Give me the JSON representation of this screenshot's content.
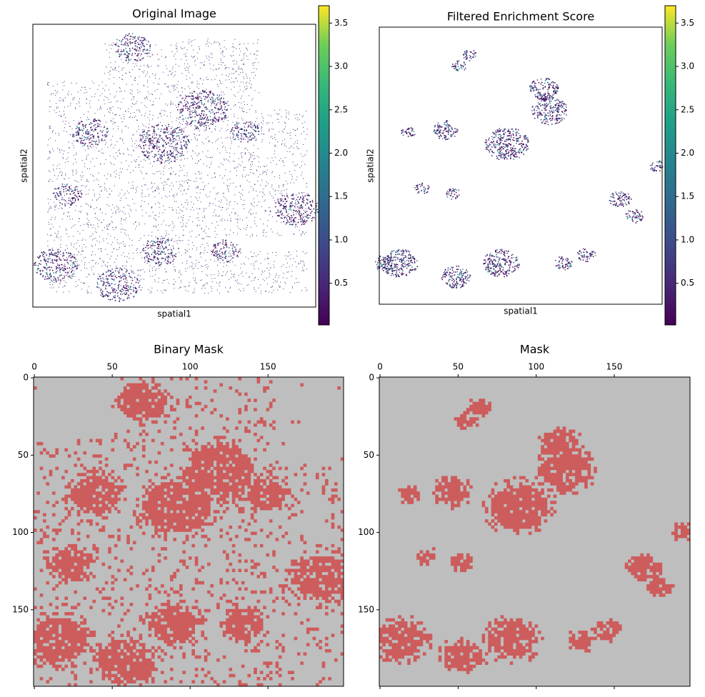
{
  "panels": [
    {
      "title": "Original Image",
      "xlabel": "spatial1",
      "ylabel": "spatial2",
      "colorbar": {
        "lim": [
          0.02,
          3.7
        ],
        "ticks": [
          0.5,
          {
            "value": 1,
            "label": "1.0"
          },
          1.5,
          {
            "value": 2,
            "label": "2.0"
          },
          2.5,
          {
            "value": 3,
            "label": "3.0"
          },
          3.5
        ]
      }
    },
    {
      "title": "Filtered Enrichment Score",
      "xlabel": "spatial1",
      "ylabel": "spatial2",
      "colorbar": {
        "lim": [
          0.02,
          3.7
        ],
        "ticks": [
          0.5,
          {
            "value": 1,
            "label": "1.0"
          },
          1.5,
          {
            "value": 2,
            "label": "2.0"
          },
          2.5,
          {
            "value": 3,
            "label": "3.0"
          },
          3.5
        ]
      }
    },
    {
      "title": "Binary Mask",
      "xlim": [
        -0.5,
        198.5
      ],
      "ylim": [
        199.5,
        -0.5
      ],
      "xticks": [
        0,
        50,
        100,
        150
      ],
      "yticks": [
        0,
        50,
        100,
        150
      ],
      "mask_color": "#cd5c5c",
      "background": "#bebebe"
    },
    {
      "title": "Mask",
      "xlim": [
        -0.5,
        198.5
      ],
      "ylim": [
        199.5,
        -0.5
      ],
      "xticks": [
        0,
        50,
        100,
        150
      ],
      "yticks": [
        0,
        50,
        100,
        150
      ],
      "mask_color": "#cd5c5c",
      "background": "#bebebe"
    }
  ]
}
